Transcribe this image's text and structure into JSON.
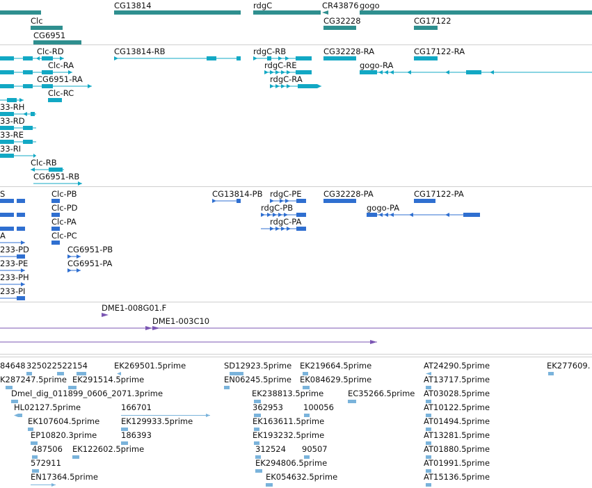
{
  "colors": {
    "gene": "#2f8f8f",
    "transcript": "#12a8c4",
    "protein": "#2f6fd0",
    "clone": "#7b56b3",
    "est": "#7ab3db"
  },
  "genes": [
    {
      "label": "CG13814"
    },
    {
      "label": "rdgC"
    },
    {
      "label": "CR43876"
    },
    {
      "label": "gogo"
    },
    {
      "label": "Clc"
    },
    {
      "label": "CG32228"
    },
    {
      "label": "CG17122"
    },
    {
      "label": "CG6951"
    }
  ],
  "transcripts": [
    {
      "label": "Clc-RD"
    },
    {
      "label": "CG13814-RB"
    },
    {
      "label": "rdgC-RB"
    },
    {
      "label": "CG32228-RA"
    },
    {
      "label": "CG17122-RA"
    },
    {
      "label": "Clc-RA"
    },
    {
      "label": "rdgC-RE"
    },
    {
      "label": "gogo-RA"
    },
    {
      "label": "CG6951-RA"
    },
    {
      "label": "rdgC-RA"
    },
    {
      "label": "Clc-RC"
    },
    {
      "label": "33-RH"
    },
    {
      "label": "33-RD"
    },
    {
      "label": "33-RE"
    },
    {
      "label": "33-RI"
    },
    {
      "label": "Clc-RB"
    },
    {
      "label": "CG6951-RB"
    }
  ],
  "proteins": [
    {
      "label": "S"
    },
    {
      "label": "Clc-PB"
    },
    {
      "label": "CG13814-PB"
    },
    {
      "label": "rdgC-PE"
    },
    {
      "label": "CG32228-PA"
    },
    {
      "label": "CG17122-PA"
    },
    {
      "label": "Clc-PD"
    },
    {
      "label": "rdgC-PB"
    },
    {
      "label": "gogo-PA"
    },
    {
      "label": "Clc-PA"
    },
    {
      "label": "rdgC-PA"
    },
    {
      "label": "A"
    },
    {
      "label": "Clc-PC"
    },
    {
      "label": "233-PD"
    },
    {
      "label": "CG6951-PB"
    },
    {
      "label": "233-PE"
    },
    {
      "label": "CG6951-PA"
    },
    {
      "label": "233-PH"
    },
    {
      "label": "233-PI"
    }
  ],
  "clones": [
    {
      "label": "DME1-008G01.F"
    },
    {
      "label": "DME1-003C10"
    }
  ],
  "ests": [
    {
      "label": "84648"
    },
    {
      "label": "325022"
    },
    {
      "label": "522154"
    },
    {
      "label": "EK269501.5prime"
    },
    {
      "label": "SD12923.5prime"
    },
    {
      "label": "EK219664.5prime"
    },
    {
      "label": "AT24290.5prime"
    },
    {
      "label": "EK277609."
    },
    {
      "label": "K287247.5prime"
    },
    {
      "label": "EK291514.5prime"
    },
    {
      "label": "EN06245.5prime"
    },
    {
      "label": "EK084629.5prime"
    },
    {
      "label": "AT13717.5prime"
    },
    {
      "label": "Dmel_dig_011899_0606_2071.3prime"
    },
    {
      "label": "EK238813.5prime"
    },
    {
      "label": "EC35266.5prime"
    },
    {
      "label": "AT03028.5prime"
    },
    {
      "label": "HL02127.5prime"
    },
    {
      "label": "166701"
    },
    {
      "label": "362953"
    },
    {
      "label": "100056"
    },
    {
      "label": "AT10122.5prime"
    },
    {
      "label": "EK107604.5prime"
    },
    {
      "label": "EK129933.5prime"
    },
    {
      "label": "EK163611.5prime"
    },
    {
      "label": "AT01494.5prime"
    },
    {
      "label": "EP10820.3prime"
    },
    {
      "label": "186393"
    },
    {
      "label": "EK193232.5prime"
    },
    {
      "label": "AT13281.5prime"
    },
    {
      "label": "487506"
    },
    {
      "label": "EK122602.5prime"
    },
    {
      "label": "312524"
    },
    {
      "label": "90507"
    },
    {
      "label": "AT01880.5prime"
    },
    {
      "label": "572911"
    },
    {
      "label": "EK294806.5prime"
    },
    {
      "label": "AT01991.5prime"
    },
    {
      "label": "EN17364.5prime"
    },
    {
      "label": "EK054632.5prime"
    },
    {
      "label": "AT15136.5prime"
    }
  ]
}
